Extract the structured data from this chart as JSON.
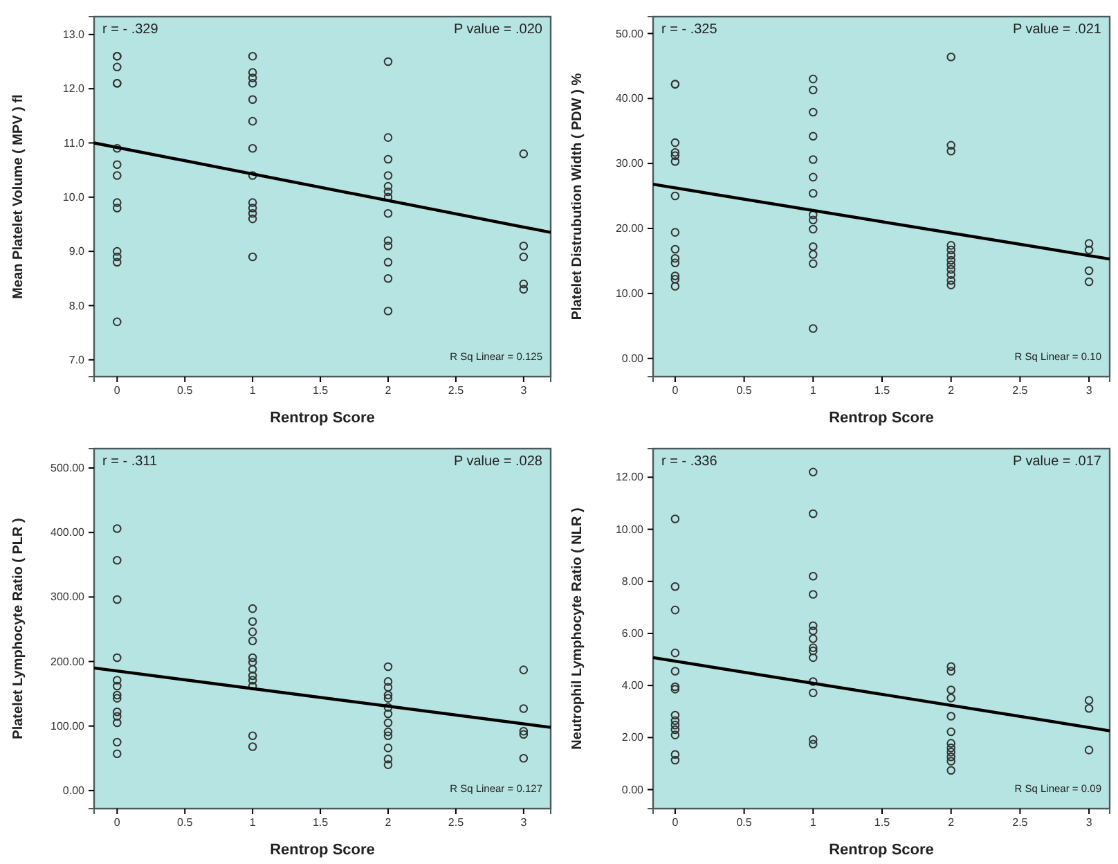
{
  "chart_data": [
    {
      "type": "scatter",
      "xlabel": "Rentrop Score",
      "ylabel": "Mean Platelet Volume ( MPV ) fl",
      "xlim": [
        -0.17,
        3.2
      ],
      "xticks": [
        0,
        0.5,
        1,
        1.5,
        2,
        2.5,
        3
      ],
      "ylim": [
        6.69,
        13.33
      ],
      "yticks": [
        {
          "value": 7,
          "label": "7.0"
        },
        {
          "value": 8,
          "label": "8.0"
        },
        {
          "value": 9,
          "label": "9.0"
        },
        {
          "value": 10,
          "label": "10.0"
        },
        {
          "value": 11,
          "label": "11.0"
        },
        {
          "value": 12,
          "label": "12.0"
        },
        {
          "value": 13,
          "label": "13.0"
        }
      ],
      "grid": false,
      "annotations": [
        "r = - .329",
        "P value = .020",
        "R Sq Linear = 0.125"
      ],
      "series": [
        {
          "type": "scatter",
          "marker": "circle",
          "color": "#333333",
          "x": [
            0,
            0,
            0,
            0,
            0,
            0,
            0,
            0,
            0,
            0,
            0,
            0,
            0,
            0,
            1,
            1,
            1,
            1,
            1,
            1,
            1,
            1,
            1,
            1,
            1,
            1,
            1,
            2,
            2,
            2,
            2,
            2,
            2,
            2,
            2,
            2,
            2,
            2,
            2,
            2,
            3,
            3,
            3,
            3,
            3
          ],
          "values": [
            12.6,
            12.6,
            12.4,
            12.1,
            12.1,
            10.9,
            10.6,
            10.4,
            9.9,
            9.8,
            9.0,
            8.9,
            8.8,
            7.7,
            12.6,
            12.3,
            12.2,
            12.1,
            11.8,
            11.4,
            10.9,
            10.4,
            9.9,
            9.8,
            9.7,
            9.6,
            8.9,
            12.5,
            11.1,
            10.7,
            10.4,
            10.2,
            10.1,
            10.0,
            9.7,
            9.2,
            9.1,
            8.8,
            8.5,
            7.9,
            10.8,
            9.1,
            8.9,
            8.4,
            8.3
          ]
        },
        {
          "type": "line",
          "color": "#000000",
          "x": [
            -0.17,
            3.2
          ],
          "values": [
            11.0,
            9.35
          ]
        }
      ]
    },
    {
      "type": "scatter",
      "xlabel": "Rentrop Score",
      "ylabel": "Platelet Distrubution Width ( PDW ) %",
      "xlim": [
        -0.16,
        3.15
      ],
      "xticks": [
        0,
        0.5,
        1,
        1.5,
        2,
        2.5,
        3
      ],
      "ylim": [
        -2.8,
        52.6
      ],
      "yticks": [
        {
          "value": 0,
          "label": "0.00"
        },
        {
          "value": 10,
          "label": "10.00"
        },
        {
          "value": 20,
          "label": "20.00"
        },
        {
          "value": 30,
          "label": "30.00"
        },
        {
          "value": 40,
          "label": "40.00"
        },
        {
          "value": 50,
          "label": "50.00"
        }
      ],
      "grid": false,
      "annotations": [
        "r = - .325",
        "P value = .021",
        "R Sq Linear = 0.10"
      ],
      "series": [
        {
          "type": "scatter",
          "marker": "circle",
          "color": "#333333",
          "x": [
            0,
            0,
            0,
            0,
            0,
            0,
            0,
            0,
            0,
            0,
            0,
            0,
            0,
            0,
            1,
            1,
            1,
            1,
            1,
            1,
            1,
            1,
            1,
            1,
            1,
            1,
            1,
            1,
            2,
            2,
            2,
            2,
            2,
            2,
            2,
            2,
            2,
            2,
            2,
            2,
            3,
            3,
            3,
            3
          ],
          "values": [
            42.2,
            42.2,
            33.2,
            31.7,
            31.2,
            30.3,
            25.0,
            19.4,
            16.8,
            15.4,
            14.7,
            12.7,
            12.2,
            11.1,
            43.0,
            41.3,
            37.9,
            34.2,
            30.6,
            27.9,
            25.4,
            22.1,
            21.3,
            19.9,
            17.2,
            16.0,
            14.6,
            4.6,
            46.4,
            32.8,
            31.9,
            17.4,
            16.7,
            15.9,
            15.1,
            14.4,
            13.7,
            12.9,
            12.0,
            11.3,
            17.7,
            16.7,
            13.5,
            11.8
          ]
        },
        {
          "type": "line",
          "color": "#000000",
          "x": [
            -0.16,
            3.15
          ],
          "values": [
            26.8,
            15.3
          ]
        }
      ]
    },
    {
      "type": "scatter",
      "xlabel": "Rentrop Score",
      "ylabel": "Platelet Lymphocyte Ratio ( PLR )",
      "xlim": [
        -0.17,
        3.2
      ],
      "xticks": [
        0,
        0.5,
        1,
        1.5,
        2,
        2.5,
        3
      ],
      "ylim": [
        -28,
        530
      ],
      "yticks": [
        {
          "value": 0,
          "label": "0.00"
        },
        {
          "value": 100,
          "label": "100.00"
        },
        {
          "value": 200,
          "label": "200.00"
        },
        {
          "value": 300,
          "label": "300.00"
        },
        {
          "value": 400,
          "label": "400.00"
        },
        {
          "value": 500,
          "label": "500.00"
        }
      ],
      "grid": false,
      "annotations": [
        "r = - .311",
        "P value = .028",
        "R Sq Linear = 0.127"
      ],
      "series": [
        {
          "type": "scatter",
          "marker": "circle",
          "color": "#333333",
          "x": [
            0,
            0,
            0,
            0,
            0,
            0,
            0,
            0,
            0,
            0,
            0,
            0,
            0,
            1,
            1,
            1,
            1,
            1,
            1,
            1,
            1,
            1,
            1,
            1,
            1,
            2,
            2,
            2,
            2,
            2,
            2,
            2,
            2,
            2,
            2,
            2,
            2,
            2,
            3,
            3,
            3,
            3,
            3
          ],
          "values": [
            406,
            357,
            296,
            206,
            171,
            162,
            148,
            143,
            122,
            115,
            105,
            75,
            57,
            282,
            262,
            246,
            232,
            206,
            199,
            188,
            178,
            171,
            162,
            85,
            68,
            192,
            169,
            160,
            148,
            143,
            129,
            119,
            105,
            91,
            85,
            66,
            49,
            40,
            187,
            127,
            92,
            87,
            50
          ]
        },
        {
          "type": "line",
          "color": "#000000",
          "x": [
            -0.17,
            3.2
          ],
          "values": [
            190,
            98
          ]
        }
      ]
    },
    {
      "type": "scatter",
      "xlabel": "Rentrop Score",
      "ylabel": "Neutrophil Lymphocyte Ratio ( NLR )",
      "xlim": [
        -0.16,
        3.15
      ],
      "xticks": [
        0,
        0.5,
        1,
        1.5,
        2,
        2.5,
        3
      ],
      "ylim": [
        -0.73,
        13.1
      ],
      "yticks": [
        {
          "value": 0,
          "label": "0.00"
        },
        {
          "value": 2,
          "label": "2.00"
        },
        {
          "value": 4,
          "label": "4.00"
        },
        {
          "value": 6,
          "label": "6.00"
        },
        {
          "value": 8,
          "label": "8.00"
        },
        {
          "value": 10,
          "label": "10.00"
        },
        {
          "value": 12,
          "label": "12.00"
        }
      ],
      "grid": false,
      "annotations": [
        "r = - .336",
        "P value = .017",
        "R Sq Linear = 0.09"
      ],
      "series": [
        {
          "type": "scatter",
          "marker": "circle",
          "color": "#333333",
          "x": [
            0,
            0,
            0,
            0,
            0,
            0,
            0,
            0,
            0,
            0,
            0,
            0,
            0,
            0,
            1,
            1,
            1,
            1,
            1,
            1,
            1,
            1,
            1,
            1,
            1,
            1,
            1,
            1,
            2,
            2,
            2,
            2,
            2,
            2,
            2,
            2,
            2,
            2,
            2,
            2,
            3,
            3,
            3
          ],
          "values": [
            10.4,
            7.8,
            6.9,
            5.25,
            4.55,
            3.95,
            3.86,
            2.86,
            2.65,
            2.48,
            2.3,
            2.1,
            1.35,
            1.13,
            12.2,
            10.6,
            8.2,
            7.5,
            6.3,
            6.1,
            5.8,
            5.45,
            5.33,
            5.07,
            4.15,
            3.72,
            1.92,
            1.75,
            4.73,
            4.55,
            3.83,
            3.52,
            2.82,
            2.22,
            1.78,
            1.6,
            1.44,
            1.26,
            1.09,
            0.74,
            3.43,
            3.12,
            1.52
          ]
        },
        {
          "type": "line",
          "color": "#000000",
          "x": [
            -0.16,
            3.15
          ],
          "values": [
            5.07,
            2.26
          ]
        }
      ]
    }
  ]
}
